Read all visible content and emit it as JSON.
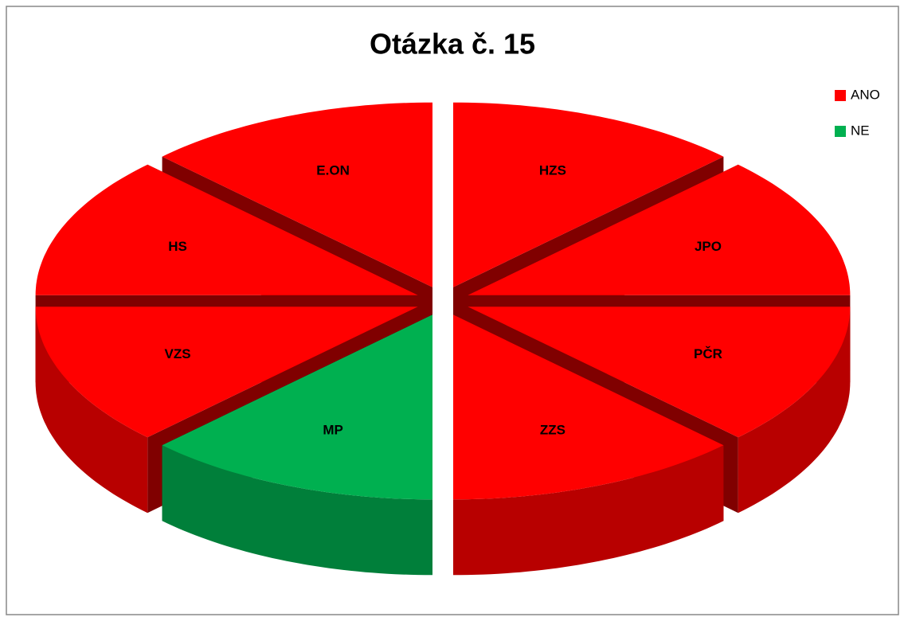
{
  "chart_data": {
    "type": "pie",
    "title": "Otázka č. 15",
    "categories": [
      "HZS",
      "JPO",
      "PČR",
      "ZZS",
      "MP",
      "VZS",
      "HS",
      "E.ON"
    ],
    "values": [
      12.5,
      12.5,
      12.5,
      12.5,
      12.5,
      12.5,
      12.5,
      12.5
    ],
    "colors": [
      "#ff0000",
      "#ff0000",
      "#ff0000",
      "#ff0000",
      "#00b050",
      "#ff0000",
      "#ff0000",
      "#ff0000"
    ],
    "legend": [
      {
        "name": "ANO",
        "color": "#ff0000"
      },
      {
        "name": "NE",
        "color": "#00b050"
      }
    ],
    "legend_position": "right"
  }
}
